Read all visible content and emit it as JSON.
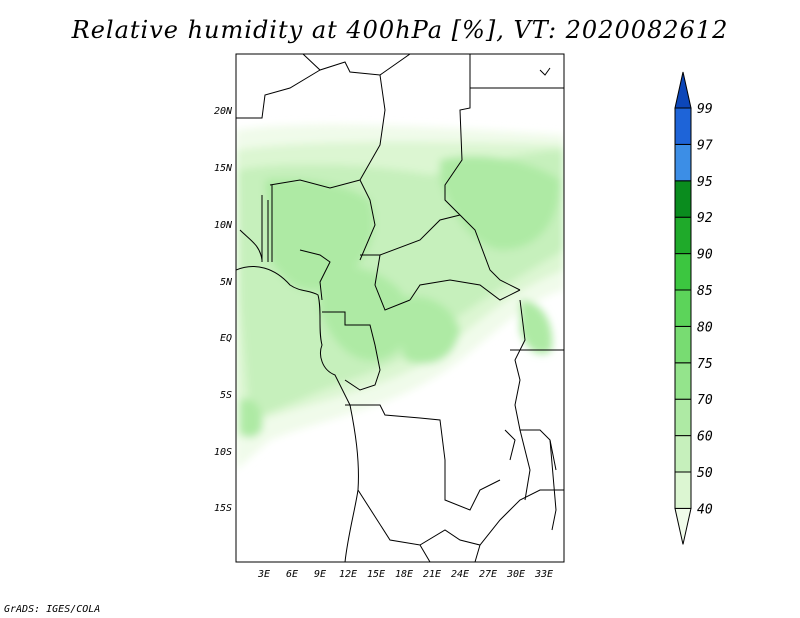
{
  "title": "Relative humidity at 400hPa [%], VT: 2020082612",
  "credit": "GrADS: IGES/COLA",
  "map": {
    "lat_labels": [
      "20N",
      "15N",
      "10N",
      "5N",
      "EQ",
      "5S",
      "10S",
      "15S"
    ],
    "lon_labels": [
      "3E",
      "6E",
      "9E",
      "12E",
      "15E",
      "18E",
      "21E",
      "24E",
      "27E",
      "30E",
      "33E"
    ],
    "lat_range": [
      -20,
      25
    ],
    "lon_range": [
      0,
      35
    ]
  },
  "colorbar": {
    "levels": [
      "40",
      "50",
      "60",
      "70",
      "75",
      "80",
      "85",
      "90",
      "92",
      "95",
      "97",
      "99"
    ],
    "colors": [
      "#f0fbea",
      "#dcf6d2",
      "#c6f0bc",
      "#aeeaa4",
      "#94e48c",
      "#78dc72",
      "#5cd45a",
      "#3cc640",
      "#1faa2a",
      "#0a8c1e",
      "#3c8ee6",
      "#1e64d8",
      "#0c46b8"
    ]
  }
}
